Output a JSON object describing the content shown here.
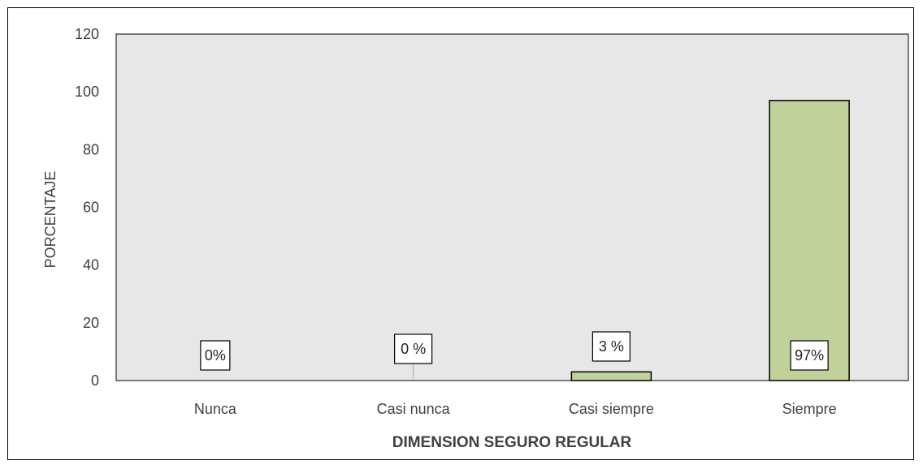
{
  "chart_data": {
    "type": "bar",
    "title": "",
    "xlabel": "DIMENSION SEGURO REGULAR",
    "ylabel": "PORCENTAJE",
    "categories": [
      "Nunca",
      "Casi nunca",
      "Casi siempre",
      "Siempre"
    ],
    "values": [
      0,
      0,
      3,
      97
    ],
    "data_labels": [
      "0%",
      "0 %",
      "3 %",
      "97%"
    ],
    "ylim": [
      0,
      120
    ],
    "yticks": [
      "0",
      "20",
      "40",
      "60",
      "80",
      "100",
      "120"
    ],
    "grid": false,
    "legend": "none",
    "colors": {
      "bar_fill": "#c0d199",
      "bar_stroke": "#000000",
      "plot_background": "#e7e7e7",
      "text": "#404040"
    }
  }
}
